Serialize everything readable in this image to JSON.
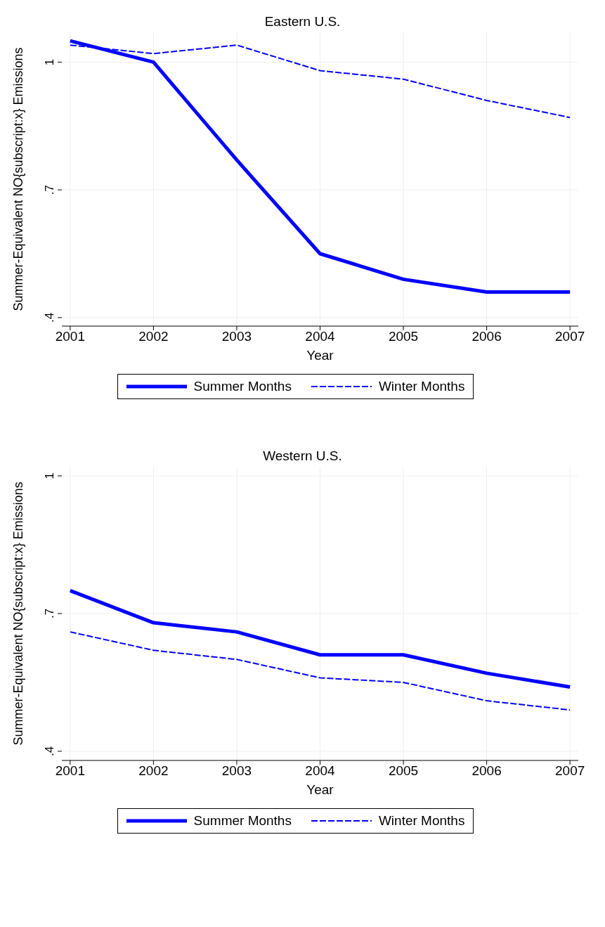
{
  "chart_data": [
    {
      "type": "line",
      "title": "Eastern U.S.",
      "xlabel": "Year",
      "ylabel": "Summer-Equivalent NO{subscript:x} Emissions",
      "x": [
        2001,
        2002,
        2003,
        2004,
        2005,
        2006,
        2007
      ],
      "xlim": [
        2000.9,
        2007.1
      ],
      "xticks": [
        2001,
        2002,
        2003,
        2004,
        2005,
        2006,
        2007
      ],
      "ylim": [
        0.38,
        1.07
      ],
      "yticks": [
        {
          "value": 0.4,
          "label": ".4"
        },
        {
          "value": 0.7,
          "label": ".7"
        },
        {
          "value": 1,
          "label": "1"
        }
      ],
      "grid": true,
      "legend": "bottom",
      "marker": "none",
      "series": [
        {
          "name": "Summer Months",
          "color": "#0000ff",
          "line_style": "solid",
          "values": [
            1.05,
            1.0,
            0.77,
            0.55,
            0.49,
            0.46,
            0.46
          ]
        },
        {
          "name": "Winter Months",
          "color": "#0000ff",
          "line_style": "dashed",
          "values": [
            1.04,
            1.02,
            1.04,
            0.98,
            0.96,
            0.91,
            0.87
          ]
        }
      ]
    },
    {
      "type": "line",
      "title": "Western U.S.",
      "xlabel": "Year",
      "ylabel": "Summer-Equivalent NO{subscript:x} Emissions",
      "x": [
        2001,
        2002,
        2003,
        2004,
        2005,
        2006,
        2007
      ],
      "xlim": [
        2000.9,
        2007.1
      ],
      "xticks": [
        2001,
        2002,
        2003,
        2004,
        2005,
        2006,
        2007
      ],
      "ylim": [
        0.38,
        1.02
      ],
      "yticks": [
        {
          "value": 0.4,
          "label": ".4"
        },
        {
          "value": 0.7,
          "label": ".7"
        },
        {
          "value": 1,
          "label": "1"
        }
      ],
      "grid": true,
      "legend": "bottom",
      "marker": "none",
      "series": [
        {
          "name": "Summer Months",
          "color": "#0000ff",
          "line_style": "solid",
          "values": [
            0.75,
            0.68,
            0.66,
            0.61,
            0.61,
            0.57,
            0.54
          ]
        },
        {
          "name": "Winter Months",
          "color": "#0000ff",
          "line_style": "dashed",
          "values": [
            0.66,
            0.62,
            0.6,
            0.56,
            0.55,
            0.51,
            0.49
          ]
        }
      ]
    }
  ]
}
